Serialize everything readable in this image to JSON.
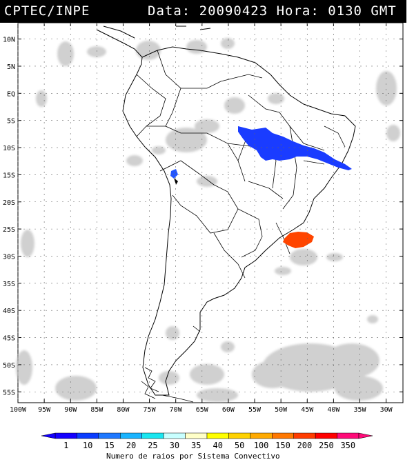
{
  "header": {
    "source": "CPTEC/INPE",
    "date_time": "Data: 20090423 Hora: 0130 GMT"
  },
  "map": {
    "lat_labels": [
      "10N",
      "5N",
      "EQ",
      "5S",
      "10S",
      "15S",
      "20S",
      "25S",
      "30S",
      "35S",
      "40S",
      "45S",
      "50S",
      "55S"
    ],
    "lon_labels": [
      "100W",
      "95W",
      "90W",
      "85W",
      "80W",
      "75W",
      "70W",
      "65W",
      "60W",
      "55W",
      "50W",
      "45W",
      "40W",
      "35W",
      "30W"
    ],
    "lat_values": [
      10,
      5,
      0,
      -5,
      -10,
      -15,
      -20,
      -25,
      -30,
      -35,
      -40,
      -45,
      -50,
      -55
    ],
    "lon_values": [
      -100,
      -95,
      -90,
      -85,
      -80,
      -75,
      -70,
      -65,
      -60,
      -55,
      -50,
      -45,
      -40,
      -35,
      -30
    ],
    "land_color": "#ffffff",
    "cloud_color": "#c8c8c8",
    "convective_systems": [
      {
        "region": "Northeast Brazil",
        "lightning_count_class": "1-10",
        "color": "#1a3cff"
      },
      {
        "region": "Western Bolivia/Peru border",
        "lightning_count_class": "10-15",
        "color": "#2255ff"
      },
      {
        "region": "Southern Brazil coast",
        "lightning_count_class": "150-200",
        "color": "#ff4500"
      }
    ]
  },
  "legend": {
    "labels": [
      "1",
      "10",
      "15",
      "20",
      "25",
      "30",
      "35",
      "40",
      "50",
      "100",
      "150",
      "200",
      "250",
      "350"
    ],
    "colors": [
      "#1500ff",
      "#0a3cff",
      "#1e78ff",
      "#19b4ff",
      "#19e6f0",
      "#c8ffff",
      "#ffffc8",
      "#ffff00",
      "#ffd200",
      "#ffaa00",
      "#ff7800",
      "#ff3c00",
      "#ff0000",
      "#ff0a78"
    ],
    "caption": "Numero de raios por Sistema Convectivo"
  }
}
